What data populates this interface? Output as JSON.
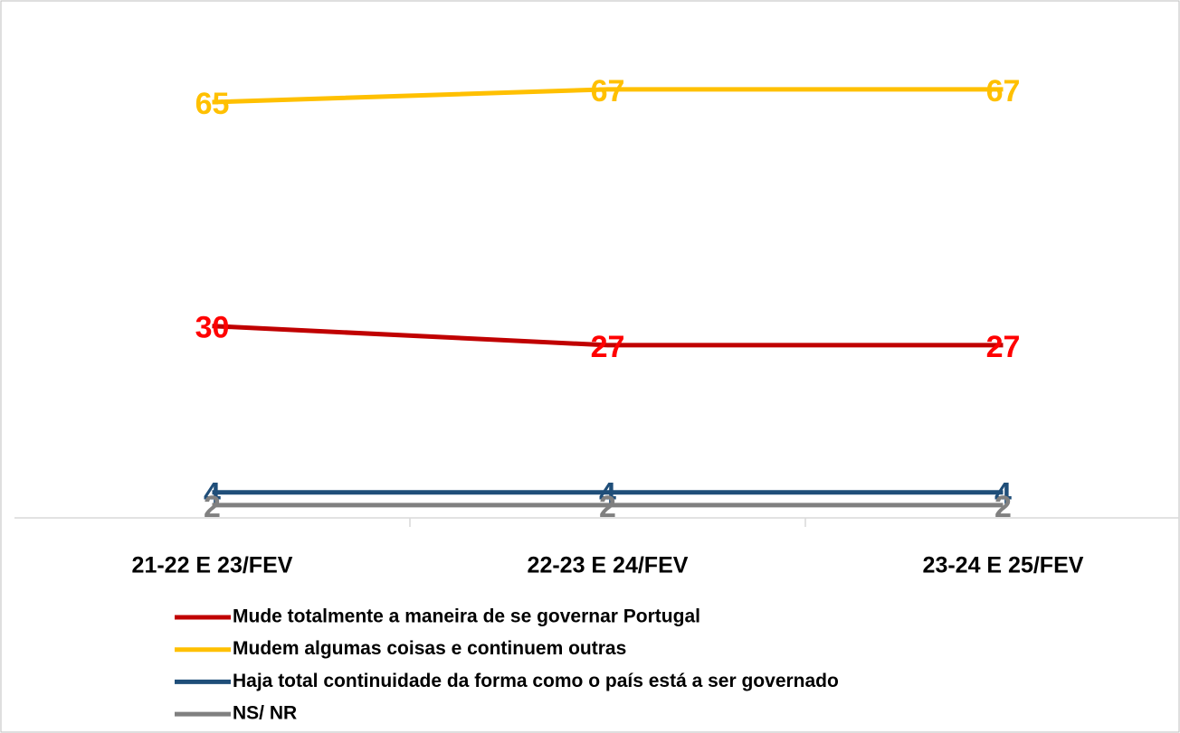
{
  "chart_data": {
    "type": "line",
    "categories": [
      "21-22 E 23/FEV",
      "22-23 E 24/FEV",
      "23-24 E 25/FEV"
    ],
    "series": [
      {
        "name": "Mude totalmente a maneira de se governar Portugal",
        "color": "#c00000",
        "label_color": "#ff0000",
        "values": [
          30,
          27,
          27
        ]
      },
      {
        "name": "Mudem algumas coisas e continuem outras",
        "color": "#ffc000",
        "label_color": "#ffc000",
        "values": [
          65,
          67,
          67
        ]
      },
      {
        "name": "Haja total continuidade da forma como o país está a ser governado",
        "color": "#1f4e79",
        "label_color": "#1f4e79",
        "values": [
          4,
          4,
          4
        ]
      },
      {
        "name": "NS/ NR",
        "color": "#808080",
        "label_color": "#808080",
        "values": [
          2,
          2,
          2
        ]
      }
    ],
    "ylim": [
      0,
      78
    ]
  }
}
